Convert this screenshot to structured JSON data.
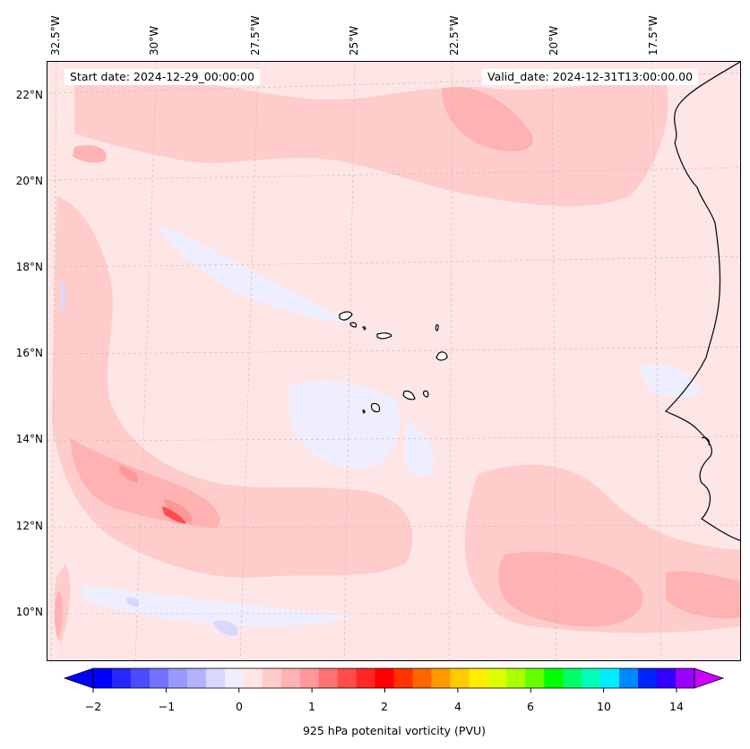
{
  "header": {
    "start_date": "Start date: 2024-12-29_00:00:00",
    "valid_date": "Valid_date: 2024-12-31T13:00:00.00"
  },
  "axes": {
    "longitude_labels": [
      "32.5°W",
      "30°W",
      "27.5°W",
      "25°W",
      "22.5°W",
      "20°W",
      "17.5°W"
    ],
    "latitude_labels": [
      "22°N",
      "20°N",
      "18°N",
      "16°N",
      "14°N",
      "12°N",
      "10°N"
    ]
  },
  "colorbar": {
    "title": "925 hPa potenital vorticity (PVU)",
    "tick_labels": [
      "−2",
      "−1",
      "0",
      "1",
      "2",
      "4",
      "6",
      "10",
      "14"
    ],
    "colors": [
      "#0000ff",
      "#2626ff",
      "#4c4cff",
      "#7272ff",
      "#9898ff",
      "#b2b2ff",
      "#d8d8ff",
      "#eeeeff",
      "#ffe6e6",
      "#ffcccc",
      "#ffb2b2",
      "#ff9898",
      "#ff7272",
      "#ff4c4c",
      "#ff2626",
      "#ff0000",
      "#ff3300",
      "#ff6600",
      "#ff9900",
      "#ffcc00",
      "#ffee00",
      "#ddff00",
      "#aaff00",
      "#66ff00",
      "#00ff00",
      "#00ff66",
      "#00ffbb",
      "#00eeff",
      "#0088ff",
      "#0022ff",
      "#3300ff",
      "#9900ff"
    ],
    "overflow_colors": {
      "under": "#0000ff",
      "over": "#cc00ff"
    }
  }
}
